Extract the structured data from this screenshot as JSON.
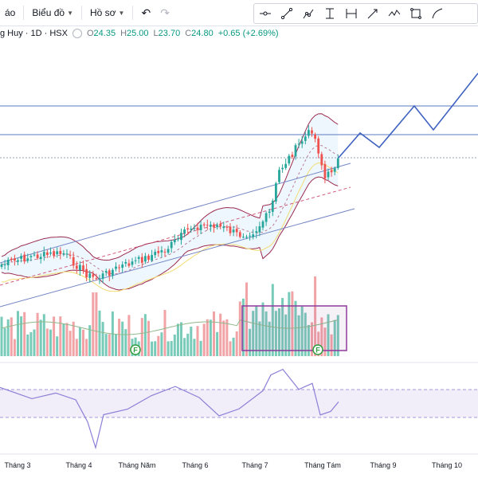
{
  "menu": {
    "item1": "áo",
    "item2": "Biểu đồ",
    "item3": "Hồ sơ"
  },
  "icons": {
    "undo": "undo-icon",
    "redo": "redo-icon",
    "tools": [
      "cross-line-icon",
      "trend-line-icon",
      "path-icon",
      "range-icon",
      "date-range-icon",
      "arrow-icon",
      "polyline-icon",
      "rectangle-icon",
      "brush-icon"
    ]
  },
  "legend": {
    "symbol": "g Huy · 1D · HSX",
    "o_label": "O",
    "o": "24.35",
    "h_label": "H",
    "h": "25.00",
    "l_label": "L",
    "l": "23.70",
    "c_label": "C",
    "c": "24.80",
    "change": "+0.65 (+2.69%)"
  },
  "colors": {
    "up": "#26a69a",
    "down": "#ef5350",
    "upVolume": "#79cbb9",
    "downVolume": "#f1a3a6",
    "bollinger": "#9c2b4f",
    "bollingerFill": "rgba(33,150,243,0.08)",
    "channel": "#7486c6",
    "projection": "#3f62c0",
    "hline": "#5b79c3",
    "rsi": "#8a7fd6",
    "rsiBand": "rgba(149,117,205,0.12)",
    "box": "#8e3a9b",
    "fmarker": "#2e9d3f"
  },
  "chart_data": {
    "type": "candlestick",
    "x_tick_labels": [
      "Tháng 3",
      "Tháng 4",
      "Tháng Năm",
      "Tháng 6",
      "Tháng 7",
      "Tháng Tám",
      "Tháng 9",
      "Tháng 10"
    ],
    "last": {
      "open": 24.35,
      "high": 25.0,
      "low": 23.7,
      "close": 24.8,
      "change": 0.65,
      "change_pct": 2.69
    },
    "markers": [
      "F",
      "F"
    ],
    "grid": false
  }
}
